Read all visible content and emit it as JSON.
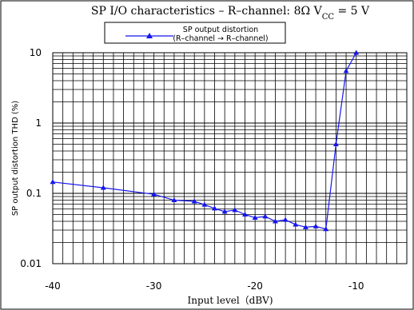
{
  "chart_data": {
    "type": "line",
    "title": "SP I/O characteristics – R–channel: 8Ω  V",
    "title_sub": "CC",
    "title_tail": " = 5 V",
    "xlabel": "Input level（dBV)",
    "ylabel": "SP output distortion  THD (%)",
    "xlim": [
      -40,
      -5
    ],
    "ylim": [
      0.01,
      10
    ],
    "yscale": "log",
    "grid": true,
    "legend_position": "top-center",
    "legend": {
      "line1": "SP output distortion",
      "line2": "(R–channel → R–channel)"
    },
    "x_ticks": [
      {
        "value": -40,
        "label": "-40"
      },
      {
        "value": -30,
        "label": "-30"
      },
      {
        "value": -20,
        "label": "-20"
      },
      {
        "value": -10,
        "label": "-10"
      }
    ],
    "y_ticks": [
      {
        "value": 10,
        "label": "10"
      },
      {
        "value": 1,
        "label": "1"
      },
      {
        "value": 0.1,
        "label": "0.1"
      },
      {
        "value": 0.01,
        "label": "0.01"
      }
    ],
    "series": [
      {
        "name": "SP output distortion (R–channel → R–channel)",
        "color": "#1515ee",
        "marker": "triangle",
        "x": [
          -40,
          -35,
          -30,
          -28,
          -26,
          -25,
          -24,
          -23,
          -22,
          -21,
          -20,
          -19,
          -18,
          -17,
          -16,
          -15,
          -14,
          -13,
          -12,
          -11,
          -10
        ],
        "y": [
          0.145,
          0.12,
          0.097,
          0.08,
          0.077,
          0.069,
          0.061,
          0.055,
          0.058,
          0.05,
          0.045,
          0.047,
          0.04,
          0.042,
          0.036,
          0.033,
          0.034,
          0.031,
          0.5,
          5.5,
          10
        ]
      }
    ]
  }
}
